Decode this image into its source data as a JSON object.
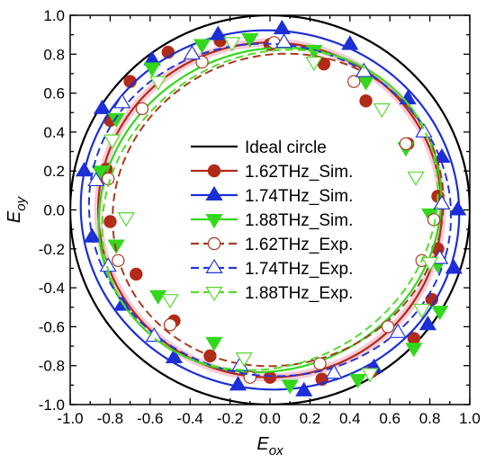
{
  "chart_data": {
    "type": "scatter",
    "title": "",
    "xlabel": {
      "main": "E",
      "sub": "ox"
    },
    "ylabel": {
      "main": "E",
      "sub": "oy"
    },
    "xlim": [
      -1.0,
      1.0
    ],
    "ylim": [
      -1.0,
      1.0
    ],
    "xticks": [
      "-1.0",
      "-0.8",
      "-0.6",
      "-0.4",
      "-0.2",
      "0.0",
      "0.2",
      "0.4",
      "0.6",
      "0.8",
      "1.0"
    ],
    "yticks": [
      "-1.0",
      "-0.8",
      "-0.6",
      "-0.4",
      "-0.2",
      "0.0",
      "0.2",
      "0.4",
      "0.6",
      "0.8",
      "1.0"
    ],
    "grid": false,
    "legend_position": "center",
    "ideal_circle": {
      "label": "Ideal circle",
      "radius": 1.0,
      "color": "#000000"
    },
    "series": [
      {
        "name": "1.62THz_Sim.",
        "color": "#b22a18",
        "marker": "circle",
        "filled": true,
        "dash": false,
        "halo": true,
        "ellipse": {
          "cx": 0.0,
          "cy": 0.0,
          "a": 0.86,
          "b": 0.86,
          "rot_deg": 0
        },
        "points": [
          [
            0.84,
            0.07
          ],
          [
            0.84,
            -0.2
          ],
          [
            0.81,
            -0.46
          ],
          [
            0.72,
            -0.66
          ],
          [
            0.51,
            -0.83
          ],
          [
            0.26,
            -0.87
          ],
          [
            0.0,
            -0.86
          ],
          [
            -0.3,
            -0.75
          ],
          [
            -0.48,
            -0.57
          ],
          [
            -0.67,
            -0.33
          ],
          [
            -0.8,
            -0.06
          ],
          [
            -0.82,
            0.21
          ],
          [
            -0.8,
            0.46
          ],
          [
            -0.7,
            0.66
          ],
          [
            -0.51,
            0.81
          ],
          [
            -0.25,
            0.87
          ],
          [
            0.0,
            0.85
          ],
          [
            0.27,
            0.75
          ],
          [
            0.48,
            0.56
          ],
          [
            0.69,
            0.34
          ]
        ]
      },
      {
        "name": "1.74THz_Sim.",
        "color": "#1c2fd6",
        "marker": "triangle-up",
        "filled": true,
        "dash": false,
        "halo": false,
        "ellipse": {
          "cx": 0.0,
          "cy": 0.0,
          "a": 0.95,
          "b": 0.92,
          "rot_deg": -18
        },
        "points": [
          [
            0.94,
            0.0
          ],
          [
            0.92,
            -0.3
          ],
          [
            0.79,
            -0.59
          ],
          [
            0.52,
            -0.81
          ],
          [
            0.17,
            -0.93
          ],
          [
            -0.16,
            -0.9
          ],
          [
            -0.48,
            -0.76
          ],
          [
            -0.74,
            -0.49
          ],
          [
            -0.89,
            -0.14
          ],
          [
            -0.93,
            0.2
          ],
          [
            -0.84,
            0.52
          ],
          [
            -0.59,
            0.77
          ],
          [
            -0.26,
            0.9
          ],
          [
            0.06,
            0.93
          ],
          [
            0.4,
            0.85
          ],
          [
            0.69,
            0.57
          ],
          [
            0.86,
            0.27
          ]
        ]
      },
      {
        "name": "1.88THz_Sim.",
        "color": "#33d81c",
        "marker": "triangle-down",
        "filled": true,
        "dash": false,
        "halo": false,
        "ellipse": {
          "cx": 0.0,
          "cy": 0.0,
          "a": 0.88,
          "b": 0.81,
          "rot_deg": 35
        },
        "points": [
          [
            0.85,
            -0.52
          ],
          [
            0.72,
            -0.71
          ],
          [
            0.44,
            -0.87
          ],
          [
            0.1,
            -0.9
          ],
          [
            -0.28,
            -0.68
          ],
          [
            -0.56,
            -0.44
          ],
          [
            -0.77,
            -0.18
          ],
          [
            -0.85,
            0.2
          ],
          [
            -0.77,
            0.47
          ],
          [
            -0.59,
            0.73
          ],
          [
            -0.34,
            0.85
          ],
          [
            -0.1,
            0.88
          ],
          [
            0.22,
            0.82
          ],
          [
            0.48,
            0.66
          ],
          [
            0.68,
            0.32
          ],
          [
            0.8,
            -0.02
          ],
          [
            0.84,
            -0.28
          ]
        ]
      },
      {
        "name": "1.62THz_Exp.",
        "color": "#a83a20",
        "marker": "circle",
        "filled": false,
        "dash": true,
        "halo": false,
        "ellipse": {
          "cx": 0.04,
          "cy": 0.0,
          "a": 0.84,
          "b": 0.79,
          "rot_deg": 30
        },
        "points": [
          [
            0.82,
            -0.05
          ],
          [
            0.76,
            -0.26
          ],
          [
            0.59,
            -0.6
          ],
          [
            0.25,
            -0.79
          ],
          [
            -0.1,
            -0.86
          ],
          [
            -0.5,
            -0.59
          ],
          [
            -0.76,
            -0.26
          ],
          [
            -0.81,
            0.16
          ],
          [
            -0.64,
            0.52
          ],
          [
            -0.34,
            0.76
          ],
          [
            0.02,
            0.86
          ],
          [
            0.42,
            0.66
          ],
          [
            0.68,
            0.34
          ]
        ]
      },
      {
        "name": "1.74THz_Exp.",
        "color": "#2337d8",
        "marker": "triangle-up",
        "filled": false,
        "dash": true,
        "halo": false,
        "ellipse": {
          "cx": 0.0,
          "cy": 0.0,
          "a": 0.91,
          "b": 0.85,
          "rot_deg": -15
        },
        "points": [
          [
            0.86,
            0.03
          ],
          [
            0.85,
            -0.25
          ],
          [
            0.64,
            -0.63
          ],
          [
            0.32,
            -0.84
          ],
          [
            -0.15,
            -0.8
          ],
          [
            -0.58,
            -0.65
          ],
          [
            -0.81,
            -0.29
          ],
          [
            -0.87,
            0.15
          ],
          [
            -0.74,
            0.55
          ],
          [
            -0.39,
            0.8
          ],
          [
            0.07,
            0.86
          ],
          [
            0.47,
            0.71
          ],
          [
            0.77,
            0.4
          ]
        ]
      },
      {
        "name": "1.88THz_Exp.",
        "color": "#55db2d",
        "marker": "triangle-down",
        "filled": false,
        "dash": true,
        "halo": false,
        "ellipse": {
          "cx": 0.0,
          "cy": 0.0,
          "a": 0.88,
          "b": 0.78,
          "rot_deg": 40
        },
        "points": [
          [
            0.8,
            -0.27
          ],
          [
            0.76,
            -0.51
          ],
          [
            0.5,
            -0.84
          ],
          [
            -0.13,
            -0.76
          ],
          [
            -0.5,
            -0.46
          ],
          [
            -0.72,
            -0.04
          ],
          [
            -0.79,
            0.36
          ],
          [
            -0.56,
            0.66
          ],
          [
            -0.19,
            0.86
          ],
          [
            0.22,
            0.76
          ],
          [
            0.56,
            0.52
          ],
          [
            0.73,
            0.17
          ]
        ]
      }
    ]
  }
}
